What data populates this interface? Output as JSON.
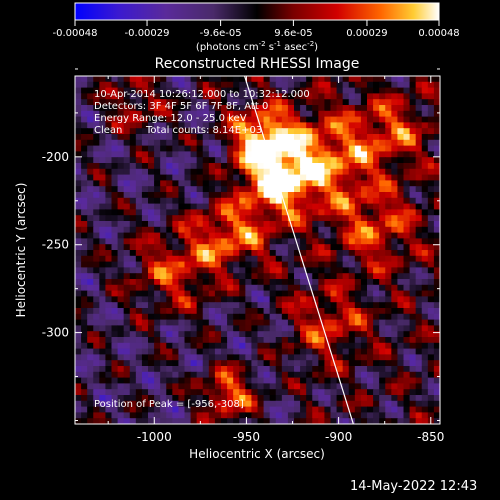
{
  "colorbar": {
    "tick_labels": [
      "-0.00048",
      "-0.00029",
      "-9.6e-05",
      "9.6e-05",
      "0.00029",
      "0.00048"
    ],
    "tick_values": [
      -0.00048,
      -0.00029,
      -9.6e-05,
      9.6e-05,
      0.00029,
      0.00048
    ],
    "range": [
      -0.00048,
      0.00048
    ],
    "unit_label": "(photons cm",
    "unit_exp1": "-2",
    "unit_mid": " s",
    "unit_exp2": "-1",
    "unit_end": " asec",
    "unit_exp3": "-2",
    "unit_close": ")",
    "colors": [
      "#0000ff",
      "#5a1eb4",
      "#5a2a8c",
      "#000000",
      "#7a0000",
      "#d10000",
      "#ff6600",
      "#ffcc33",
      "#ffffff"
    ]
  },
  "chart_data": {
    "type": "heatmap",
    "title": "Reconstructed RHESSI Image",
    "xlabel": "Heliocentric X (arcsec)",
    "ylabel": "Heliocentric Y (arcsec)",
    "xlim": [
      -1043,
      -845
    ],
    "ylim": [
      -352,
      -154
    ],
    "x_ticks": [
      -1000,
      -950,
      -900,
      -850
    ],
    "x_tick_labels": [
      "-1000",
      "-950",
      "-900",
      "-850"
    ],
    "y_ticks": [
      -200,
      -250,
      -300
    ],
    "y_tick_labels": [
      "-200",
      "-250",
      "-300"
    ],
    "limb_line": [
      [
        -951,
        -154
      ],
      [
        -892,
        -352
      ]
    ],
    "peak": [
      -956,
      -308
    ],
    "annotations": [
      "10-Apr-2014 10:26:12.000 to 10:32:12.000",
      "Detectors: 3F 4F 5F 6F 7F 8F, Att 0",
      "Energy Range: 12.0 - 25.0 keV",
      "Clean",
      "Total counts: 8.14E+03",
      "Position of Peak = [-956,-308]"
    ]
  },
  "footer": {
    "timestamp": "14-May-2022 12:43"
  }
}
